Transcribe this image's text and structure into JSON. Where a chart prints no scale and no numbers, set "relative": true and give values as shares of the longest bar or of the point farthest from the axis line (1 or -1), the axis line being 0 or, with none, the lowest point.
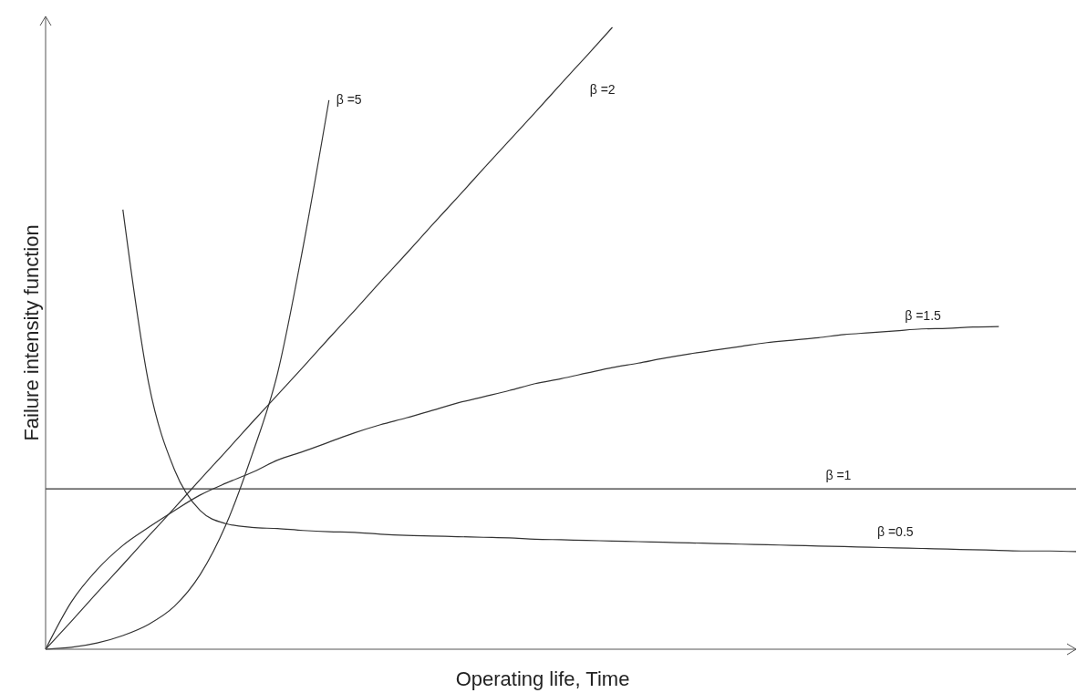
{
  "chart_data": {
    "type": "line",
    "relative": true,
    "xlabel": "Operating life, Time",
    "ylabel": "Failure intensity function",
    "marker": "none",
    "line_style": "solid",
    "categories": [
      null,
      null,
      null,
      null,
      null,
      null,
      null,
      null,
      null,
      null,
      null,
      null,
      null,
      null,
      null,
      null,
      null,
      null,
      null,
      null,
      null,
      null,
      null,
      null,
      null,
      null,
      null,
      null,
      null,
      null,
      null,
      null,
      null,
      null,
      null,
      null,
      null,
      null,
      null,
      null,
      null
    ],
    "series": [
      {
        "name": "β =5",
        "color": "#333333",
        "values": [
          0,
          0.003,
          0.01,
          0.022,
          0.04,
          0.069,
          0.12,
          0.2,
          0.311,
          0.443,
          0.648,
          0.883,
          null,
          null,
          null,
          null,
          null,
          null,
          null,
          null,
          null,
          null,
          null,
          null,
          null,
          null,
          null,
          null,
          null,
          null,
          null,
          null,
          null,
          null,
          null,
          null,
          null,
          null,
          null,
          null,
          null
        ]
      },
      {
        "name": "β =2",
        "color": "#333333",
        "values": [
          0,
          0.045,
          0.091,
          0.136,
          0.182,
          0.227,
          0.273,
          0.318,
          0.364,
          0.409,
          0.454,
          0.5,
          0.545,
          0.591,
          0.636,
          0.682,
          0.727,
          0.773,
          0.818,
          0.863,
          0.909,
          0.954,
          1,
          null,
          null,
          null,
          null,
          null,
          null,
          null,
          null,
          null,
          null,
          null,
          null,
          null,
          null,
          null,
          null,
          null,
          null
        ]
      },
      {
        "name": "β =1.5",
        "color": "#333333",
        "values": [
          0,
          0.076,
          0.128,
          0.167,
          0.196,
          0.223,
          0.248,
          0.267,
          0.284,
          0.304,
          0.318,
          0.333,
          0.348,
          0.361,
          0.372,
          0.384,
          0.396,
          0.406,
          0.416,
          0.427,
          0.435,
          0.444,
          0.453,
          0.46,
          0.468,
          0.475,
          0.481,
          0.487,
          0.493,
          0.497,
          0.501,
          0.506,
          0.509,
          0.512,
          0.515,
          0.516,
          0.518,
          0.519,
          null,
          null,
          null
        ]
      },
      {
        "name": "β =1",
        "color": "#333333",
        "values": [
          0.258,
          0.258,
          0.258,
          0.258,
          0.258,
          0.258,
          0.258,
          0.258,
          0.258,
          0.258,
          0.258,
          0.258,
          0.258,
          0.258,
          0.258,
          0.258,
          0.258,
          0.258,
          0.258,
          0.258,
          0.258,
          0.258,
          0.258,
          0.258,
          0.258,
          0.258,
          0.258,
          0.258,
          0.258,
          0.258,
          0.258,
          0.258,
          0.258,
          0.258,
          0.258,
          0.258,
          0.258,
          0.258,
          0.258,
          0.258,
          0.258
        ]
      },
      {
        "name": "β =0.5",
        "color": "#333333",
        "values": [
          null,
          null,
          null,
          0.707,
          0.428,
          0.289,
          0.223,
          0.202,
          0.196,
          0.194,
          0.191,
          0.189,
          0.188,
          0.185,
          0.183,
          0.182,
          0.181,
          0.18,
          0.179,
          0.177,
          0.176,
          0.175,
          0.174,
          0.173,
          0.172,
          0.171,
          0.17,
          0.169,
          0.168,
          0.167,
          0.166,
          0.165,
          0.164,
          0.163,
          0.162,
          0.161,
          0.16,
          0.159,
          0.158,
          0.158,
          0.157
        ]
      }
    ]
  }
}
